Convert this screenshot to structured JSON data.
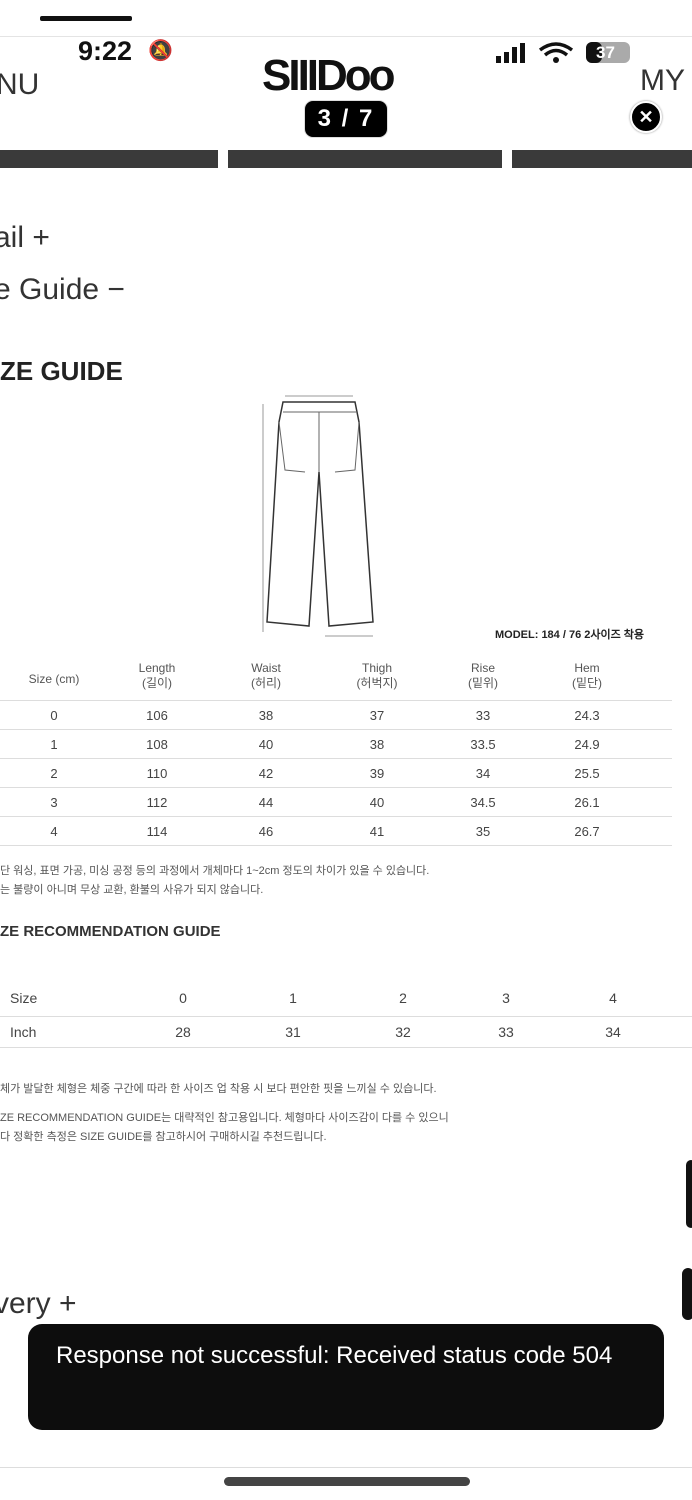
{
  "status_bar": {
    "time": "9:22",
    "battery": "37"
  },
  "header": {
    "menu": "NU",
    "logo": "SIIIDoo",
    "my": "MY",
    "counter": "3 / 7",
    "close_icon": "close-icon"
  },
  "accordion": {
    "detail": "ail +",
    "size_guide": "e Guide −",
    "delivery": "very +"
  },
  "size_guide": {
    "title": "ZE GUIDE",
    "model_note": "MODEL: 184 / 76 2사이즈 착용",
    "headers": [
      [
        "Size (cm)",
        ""
      ],
      [
        "Length",
        "(길이)"
      ],
      [
        "Waist",
        "(허리)"
      ],
      [
        "Thigh",
        "(허벅지)"
      ],
      [
        "Rise",
        "(밑위)"
      ],
      [
        "Hem",
        "(밑단)"
      ]
    ],
    "rows": [
      [
        "0",
        "106",
        "38",
        "37",
        "33",
        "24.3"
      ],
      [
        "1",
        "108",
        "40",
        "38",
        "33.5",
        "24.9"
      ],
      [
        "2",
        "110",
        "42",
        "39",
        "34",
        "25.5"
      ],
      [
        "3",
        "112",
        "44",
        "40",
        "34.5",
        "26.1"
      ],
      [
        "4",
        "114",
        "46",
        "41",
        "35",
        "26.7"
      ]
    ],
    "notes": [
      "단 워싱, 표면 가공, 미싱 공정 등의 과정에서 개체마다 1~2cm 정도의 차이가 있을 수 있습니다.",
      "는 불량이 아니며 무상 교환, 환불의 사유가 되지 않습니다."
    ]
  },
  "recommendation": {
    "title": "ZE RECOMMENDATION GUIDE",
    "size_label": "Size",
    "sizes": [
      "0",
      "1",
      "2",
      "3",
      "4"
    ],
    "inch_label": "Inch",
    "inches": [
      "28",
      "31",
      "32",
      "33",
      "34"
    ],
    "notes": [
      "체가 발달한 체형은 체중 구간에 따라 한 사이즈 업 착용 시 보다 편안한 핏을 느끼실 수 있습니다.",
      "ZE RECOMMENDATION GUIDE는 대략적인 참고용입니다. 체형마다 사이즈감이 다를 수 있으니",
      "다 정확한 측정은 SIZE GUIDE를 참고하시어 구매하시길 추천드립니다."
    ]
  },
  "toast": {
    "message": "Response not successful: Received status code 504"
  }
}
